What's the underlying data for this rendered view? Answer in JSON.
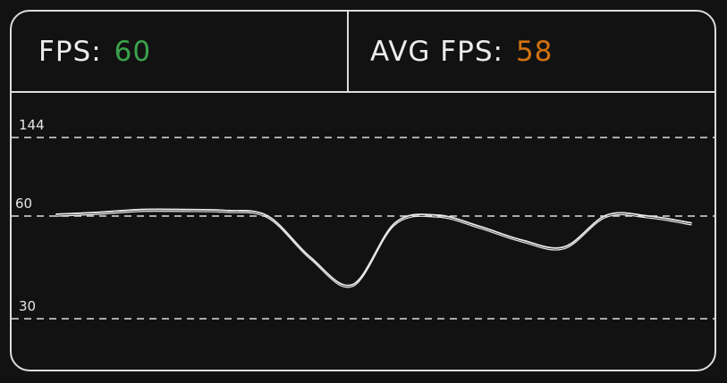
{
  "header": {
    "fps_label": "FPS:",
    "fps_value": "60",
    "avg_label": "AVG FPS:",
    "avg_value": "58"
  },
  "colors": {
    "background": "#121212",
    "border": "#dcdcdc",
    "fps_value": "#3aa14b",
    "avg_value": "#d3720f"
  },
  "chart_data": {
    "type": "line",
    "title": "",
    "xlabel": "",
    "ylabel": "",
    "reference_lines": [
      {
        "label": "144",
        "value": 144
      },
      {
        "label": "60",
        "value": 60
      },
      {
        "label": "30",
        "value": 30
      }
    ],
    "series": [
      {
        "values": [
          62,
          64,
          67,
          67,
          66,
          60,
          48,
          40,
          58,
          61,
          57,
          53,
          51,
          61,
          60,
          58
        ]
      }
    ]
  }
}
